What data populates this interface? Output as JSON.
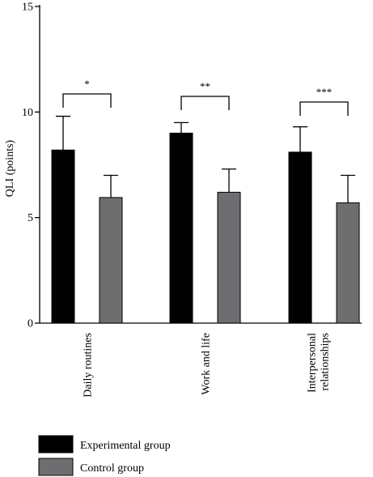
{
  "chart_data": {
    "type": "bar",
    "title": "",
    "xlabel": "",
    "ylabel": "QLI (points)",
    "ylim": [
      0,
      15
    ],
    "yticks": [
      "0",
      "5",
      "10",
      "15"
    ],
    "categories": [
      "Daily routines",
      "Work and life",
      "Interpersonal relationships"
    ],
    "category_lines": [
      [
        "Daily routines"
      ],
      [
        "Work and life"
      ],
      [
        "Interpersonal",
        "relationships"
      ]
    ],
    "series": [
      {
        "name": "Experimental group",
        "color": "#000000",
        "values": [
          8.2,
          9.0,
          8.1
        ],
        "errors": [
          1.6,
          0.5,
          1.2
        ]
      },
      {
        "name": "Control group",
        "color": "#6e6e71",
        "values": [
          5.95,
          6.2,
          5.7
        ],
        "errors": [
          1.05,
          1.1,
          1.3
        ]
      }
    ],
    "significance": [
      "*",
      "**",
      "***"
    ],
    "grid": false,
    "legend_position": "bottom-left"
  }
}
